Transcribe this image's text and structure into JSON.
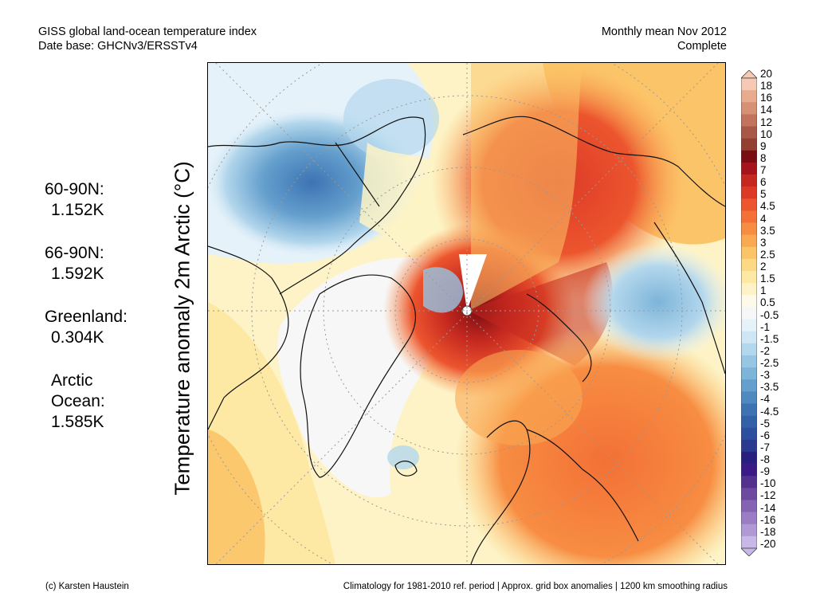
{
  "header": {
    "title_line1": "GISS global land-ocean temperature index",
    "title_line2": "Date base: GHCNv3/ERSSTv4",
    "period_line1": "Monthly mean Nov 2012",
    "period_line2": "Complete"
  },
  "stats": [
    {
      "label": "60-90N:",
      "value": "1.152K"
    },
    {
      "label": "66-90N:",
      "value": "1.592K"
    },
    {
      "label": "Greenland:",
      "value": "0.304K"
    },
    {
      "label_line1": "Arctic",
      "label_line2": "Ocean:",
      "value": "1.585K"
    }
  ],
  "y_axis_label": "Temperature anomaly 2m Arctic (°C)",
  "colorbar": {
    "labels": [
      "20",
      "18",
      "16",
      "14",
      "12",
      "10",
      "9",
      "8",
      "7",
      "6",
      "5",
      "4.5",
      "4",
      "3.5",
      "3",
      "2.5",
      "2",
      "1.5",
      "1",
      "0.5",
      "-0.5",
      "-1",
      "-1.5",
      "-2",
      "-2.5",
      "-3",
      "-3.5",
      "-4",
      "-4.5",
      "-5",
      "-6",
      "-7",
      "-8",
      "-9",
      "-10",
      "-12",
      "-14",
      "-16",
      "-18",
      "-20"
    ],
    "colors": [
      "#f6c9b4",
      "#e8ab8e",
      "#d69074",
      "#c2735c",
      "#a85846",
      "#933f32",
      "#7a0d12",
      "#a5141b",
      "#c5281f",
      "#dc3a26",
      "#ec552e",
      "#f37036",
      "#f78d42",
      "#faa953",
      "#fcc468",
      "#fdd985",
      "#fde9a4",
      "#fdf3c6",
      "#fdfaea",
      "#f7f7f7",
      "#e6f2fa",
      "#cfe6f4",
      "#b3d7ec",
      "#97c6e3",
      "#7db4d9",
      "#649fcd",
      "#4e89c0",
      "#3d73b3",
      "#3361a8",
      "#2c4fa0",
      "#2a3a90",
      "#291f7e",
      "#3a1a86",
      "#55318f",
      "#6d4aa0",
      "#8563b3",
      "#9a7dc4",
      "#b09ad6",
      "#c7b8e7"
    ]
  },
  "footer": {
    "credit": "(c) Karsten Haustein",
    "note": "Climatology for 1981-2010 ref. period | Approx. grid box anomalies | 1200 km smoothing radius"
  }
}
